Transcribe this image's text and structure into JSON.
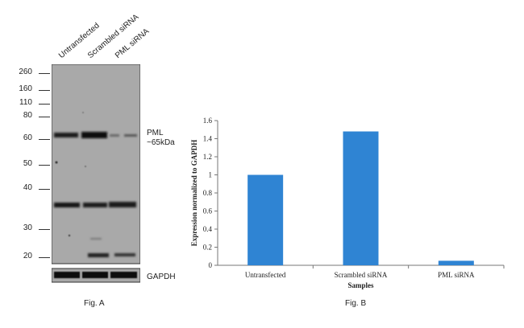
{
  "figure_a": {
    "lanes": [
      "Untransfected",
      "Scrambled siRNA",
      "PML siRNA"
    ],
    "markers": [
      "260",
      "160",
      "110",
      "80",
      "60",
      "50",
      "40",
      "30",
      "20"
    ],
    "band_labels": {
      "pml_line1": "PML",
      "pml_line2": "~65kDa",
      "gapdh": "GAPDH"
    },
    "caption": "Fig. A"
  },
  "figure_b": {
    "caption": "Fig. B"
  },
  "chart_data": {
    "type": "bar",
    "categories": [
      "Untransfected",
      "Scrambled siRNA",
      "PML siRNA"
    ],
    "values": [
      1.0,
      1.48,
      0.05
    ],
    "xlabel": "Samples",
    "ylabel": "Expression normalized to GAPDH",
    "ylim": [
      0,
      1.6
    ],
    "yticks": [
      "0",
      "0.2",
      "0.4",
      "0.6",
      "0.8",
      "1",
      "1.2",
      "1.4",
      "1.6"
    ],
    "color": "#2f84d3",
    "grid": false
  }
}
